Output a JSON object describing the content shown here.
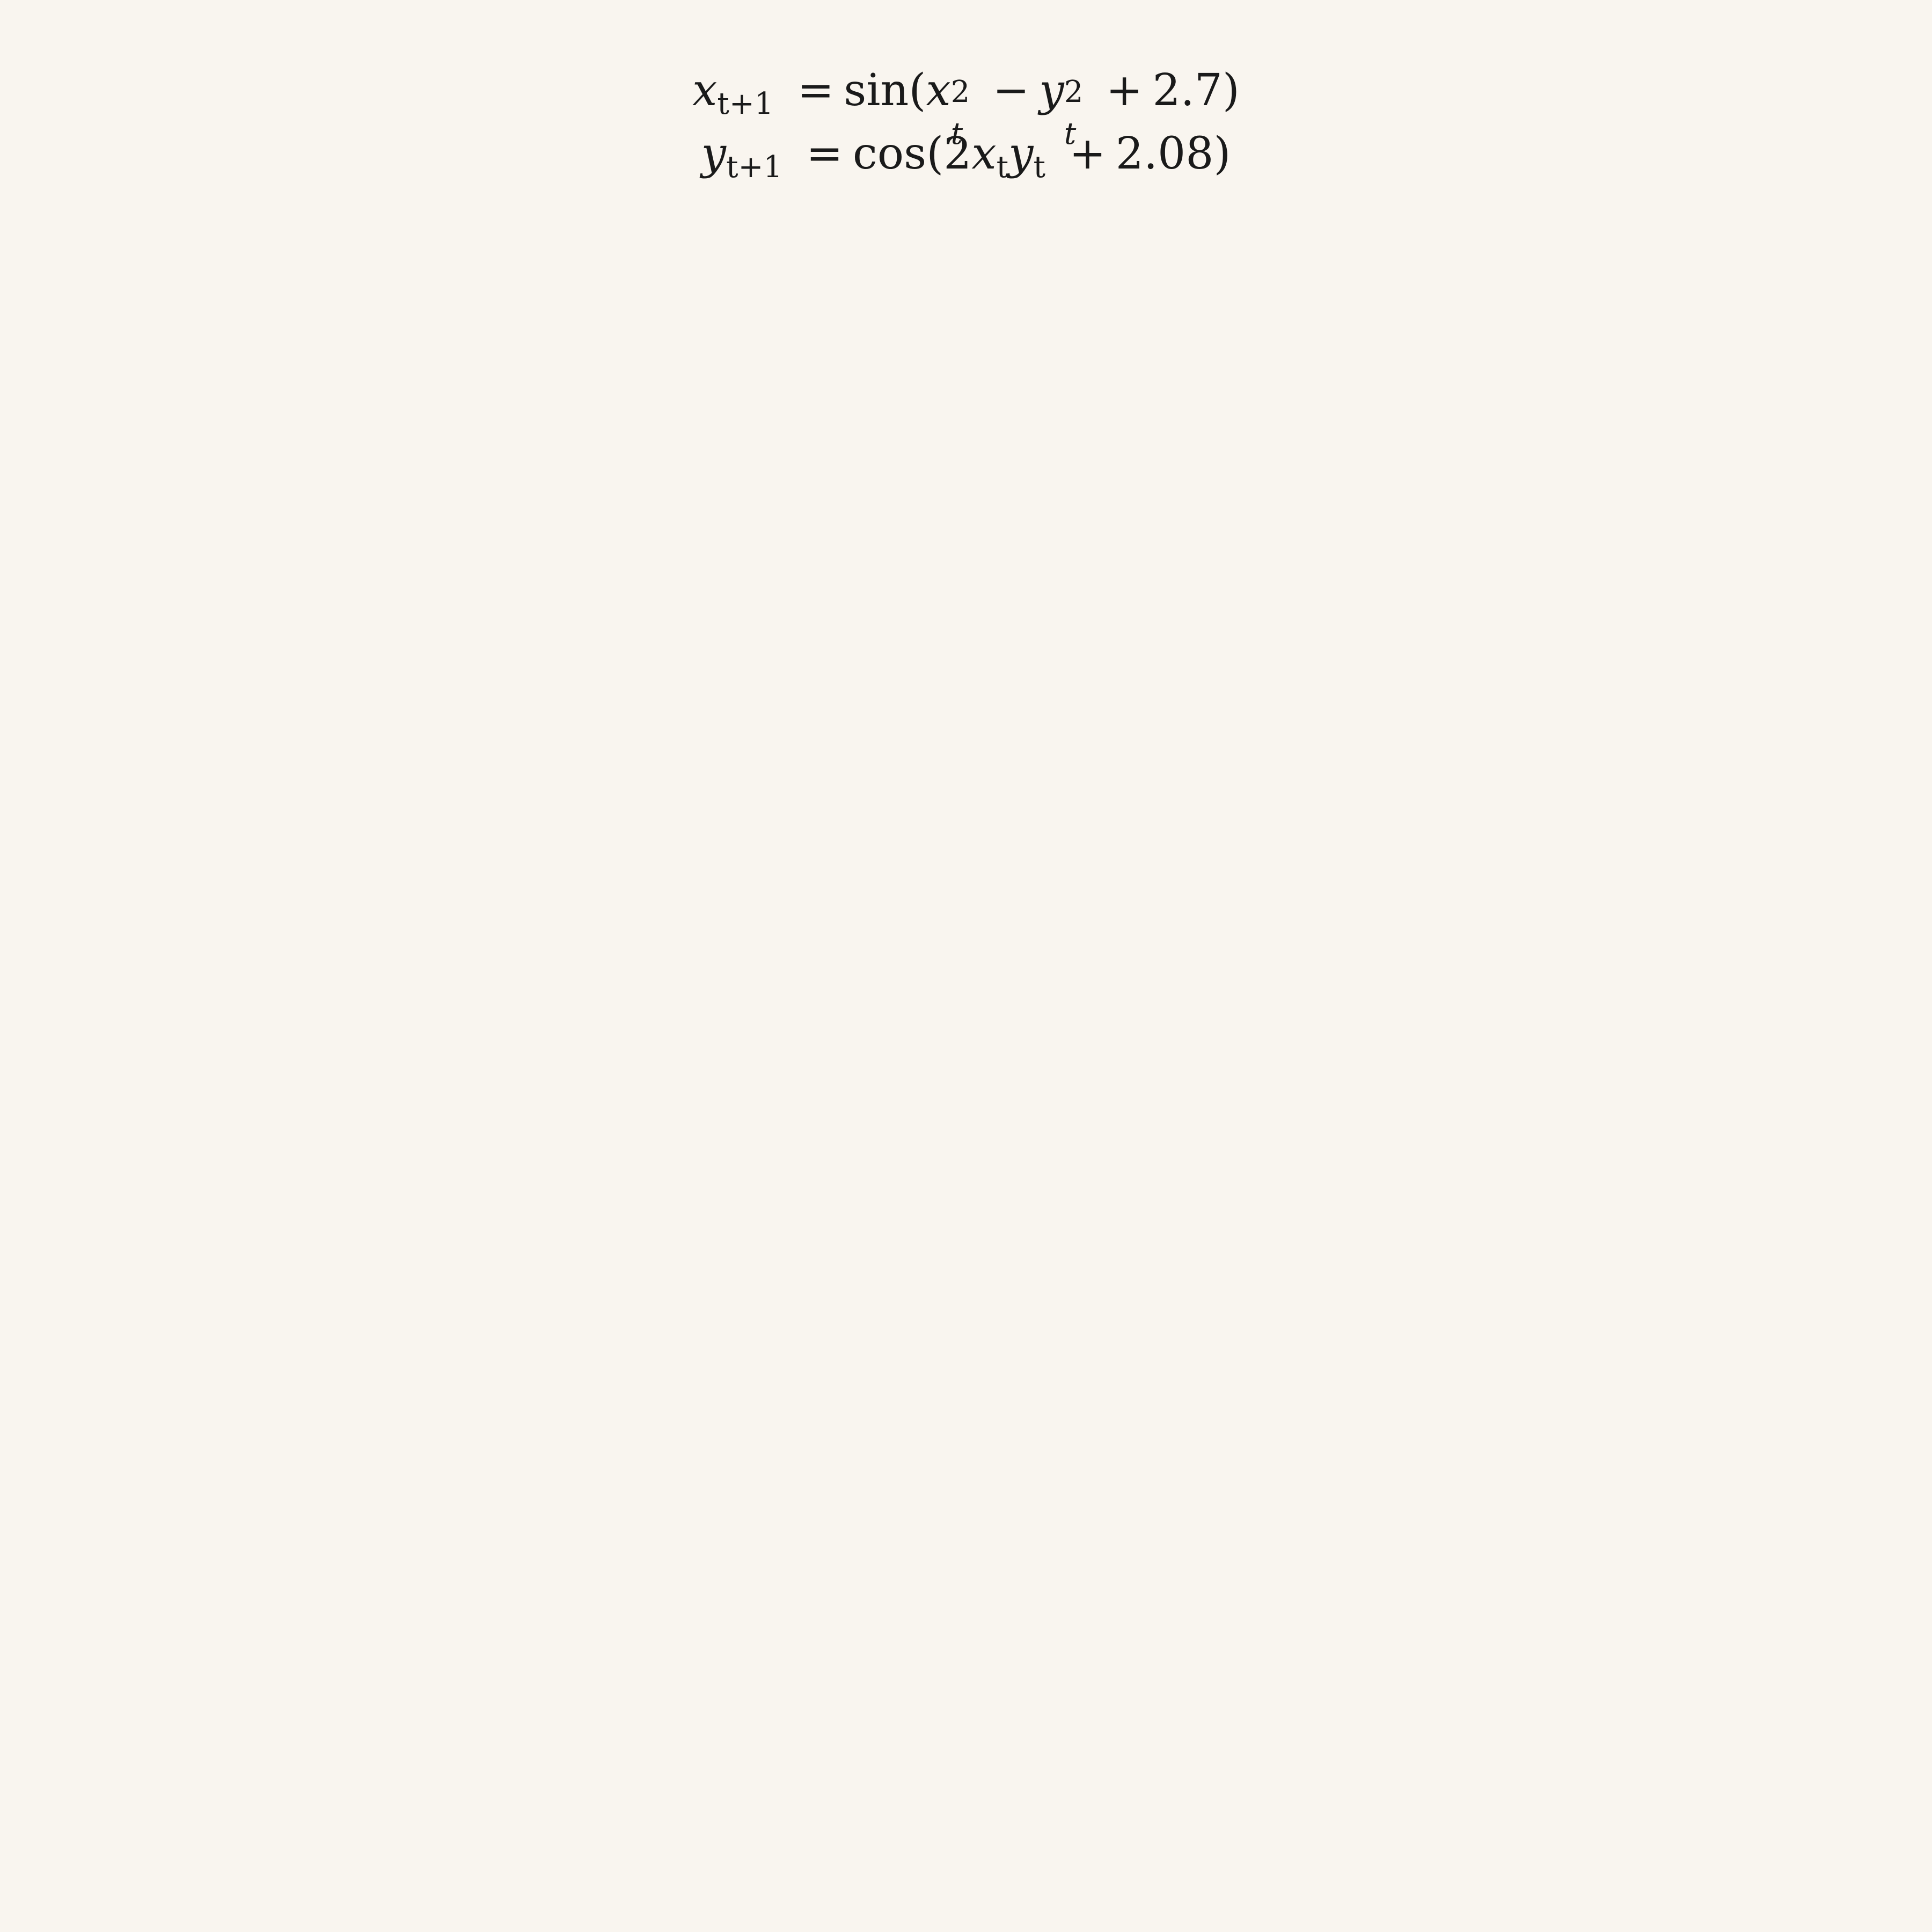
{
  "equations": {
    "line1": {
      "lhs_var": "x",
      "lhs_sub": "t+1",
      "eq": "=",
      "func": "sin(",
      "a_var": "x",
      "a_sup": "2",
      "a_sub": "t",
      "minus": "−",
      "b_var": "y",
      "b_sup": "2",
      "b_sub": "t",
      "plus": "+",
      "const": "2.7",
      "close": ")"
    },
    "line2": {
      "lhs_var": "y",
      "lhs_sub": "t+1",
      "eq": "=",
      "func": "cos(",
      "coef": "2",
      "a_var": "x",
      "a_sub": "t",
      "b_var": "y",
      "b_sub": "t",
      "plus": "+",
      "const": "2.08",
      "close": ")"
    }
  },
  "attractor": {
    "a": 2.7,
    "b": 2.08,
    "ink_color": "#000000",
    "background_color": "#f9f5ef"
  }
}
